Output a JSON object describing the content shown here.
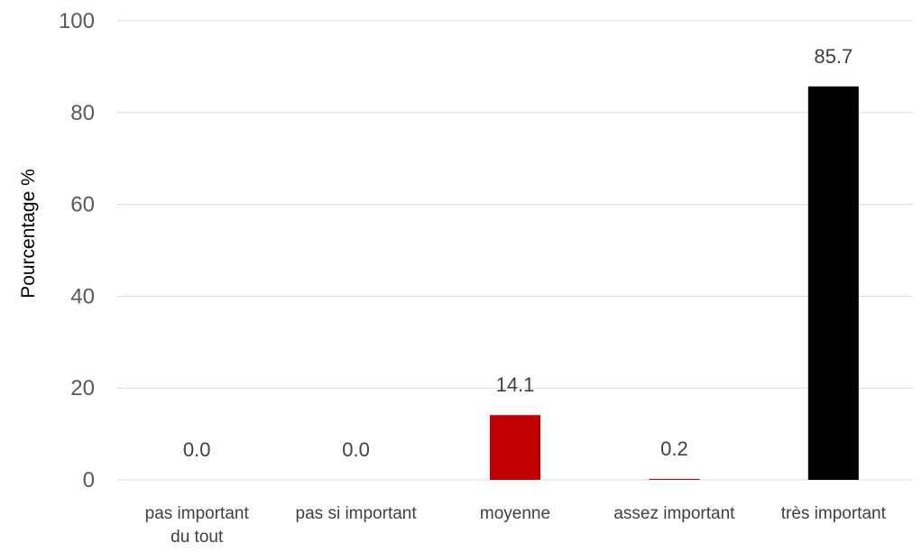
{
  "chart_data": {
    "type": "bar",
    "title": "",
    "xlabel": "",
    "ylabel": "Pourcentage %",
    "categories": [
      [
        "pas important",
        "du tout"
      ],
      [
        "pas si important"
      ],
      [
        "moyenne"
      ],
      [
        "assez important"
      ],
      [
        "très important"
      ]
    ],
    "values": [
      0.0,
      0.0,
      14.1,
      0.2,
      85.7
    ],
    "data_labels": [
      "0.0",
      "0.0",
      "14.1",
      "0.2",
      "85.7"
    ],
    "bar_colors": [
      "#c00000",
      "#c00000",
      "#c00000",
      "#c00000",
      "#000000"
    ],
    "ylim": [
      0,
      100
    ],
    "yticks": [
      0,
      20,
      40,
      60,
      80,
      100
    ],
    "grid": true,
    "legend": "none"
  }
}
